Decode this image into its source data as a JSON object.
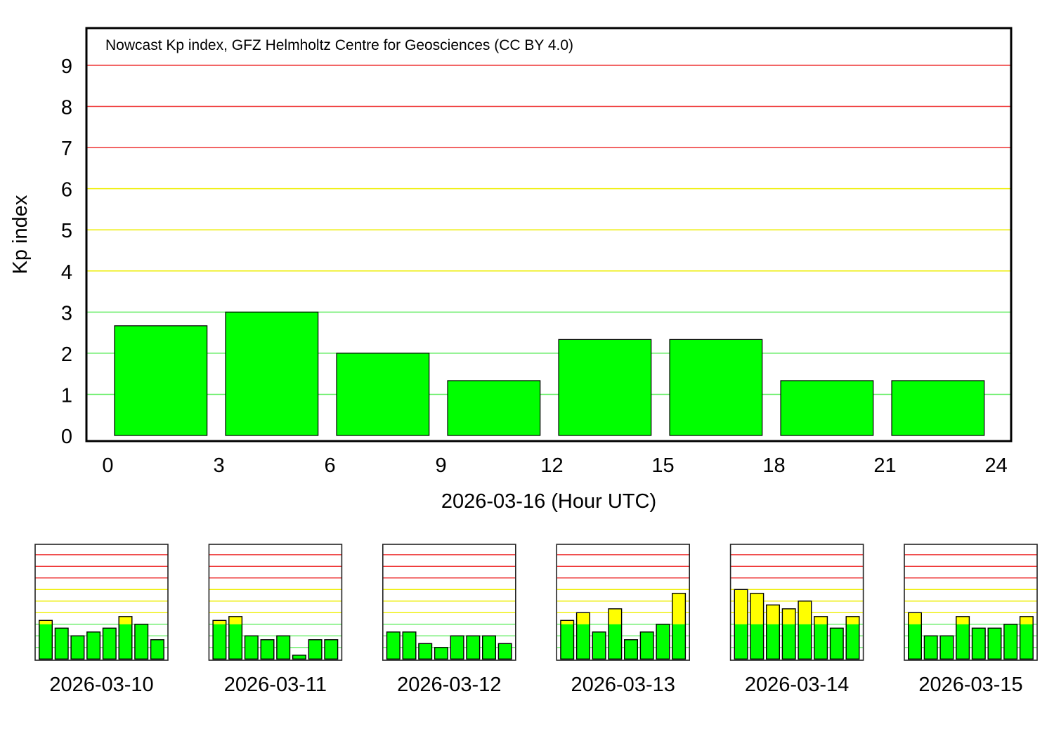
{
  "chart_data": [
    {
      "type": "bar",
      "title": "Nowcast Kp index, GFZ Helmholtz Centre for Geosciences (CC BY 4.0)",
      "xlabel": "2026-03-16 (Hour UTC)",
      "ylabel": "Kp index",
      "xlim": [
        0,
        24
      ],
      "ylim": [
        0,
        9
      ],
      "xticks": [
        "0",
        "3",
        "6",
        "9",
        "12",
        "15",
        "18",
        "21",
        "24"
      ],
      "yticks": [
        "0",
        "1",
        "2",
        "3",
        "4",
        "5",
        "6",
        "7",
        "8",
        "9"
      ],
      "x": [
        0,
        3,
        6,
        9,
        12,
        15,
        18,
        21
      ],
      "values": [
        2.667,
        3.0,
        2.0,
        1.333,
        2.333,
        2.333,
        1.333,
        1.333
      ],
      "grid": true
    },
    {
      "type": "bar",
      "label": "2026-03-10",
      "values": [
        3.333,
        2.667,
        2.0,
        2.333,
        2.667,
        3.667,
        3.0,
        1.667
      ]
    },
    {
      "type": "bar",
      "label": "2026-03-11",
      "values": [
        3.333,
        3.667,
        2.0,
        1.667,
        2.0,
        0.333,
        1.667,
        1.667
      ]
    },
    {
      "type": "bar",
      "label": "2026-03-12",
      "values": [
        2.333,
        2.333,
        1.333,
        1.0,
        2.0,
        2.0,
        2.0,
        1.333
      ]
    },
    {
      "type": "bar",
      "label": "2026-03-13",
      "values": [
        3.333,
        4.0,
        2.333,
        4.333,
        1.667,
        2.333,
        3.0,
        5.667
      ]
    },
    {
      "type": "bar",
      "label": "2026-03-14",
      "values": [
        6.0,
        5.667,
        4.667,
        4.333,
        5.0,
        3.667,
        2.667,
        3.667
      ]
    },
    {
      "type": "bar",
      "label": "2026-03-15",
      "values": [
        4.0,
        2.0,
        2.0,
        3.667,
        2.667,
        2.667,
        3.0,
        3.667
      ]
    }
  ],
  "colors": {
    "quiet": "#00ff00",
    "active": "#ffff00",
    "storm": "#ff0000",
    "grid_green": "#66ee66",
    "grid_yellow": "#eeee00",
    "grid_red": "#ee3333"
  }
}
